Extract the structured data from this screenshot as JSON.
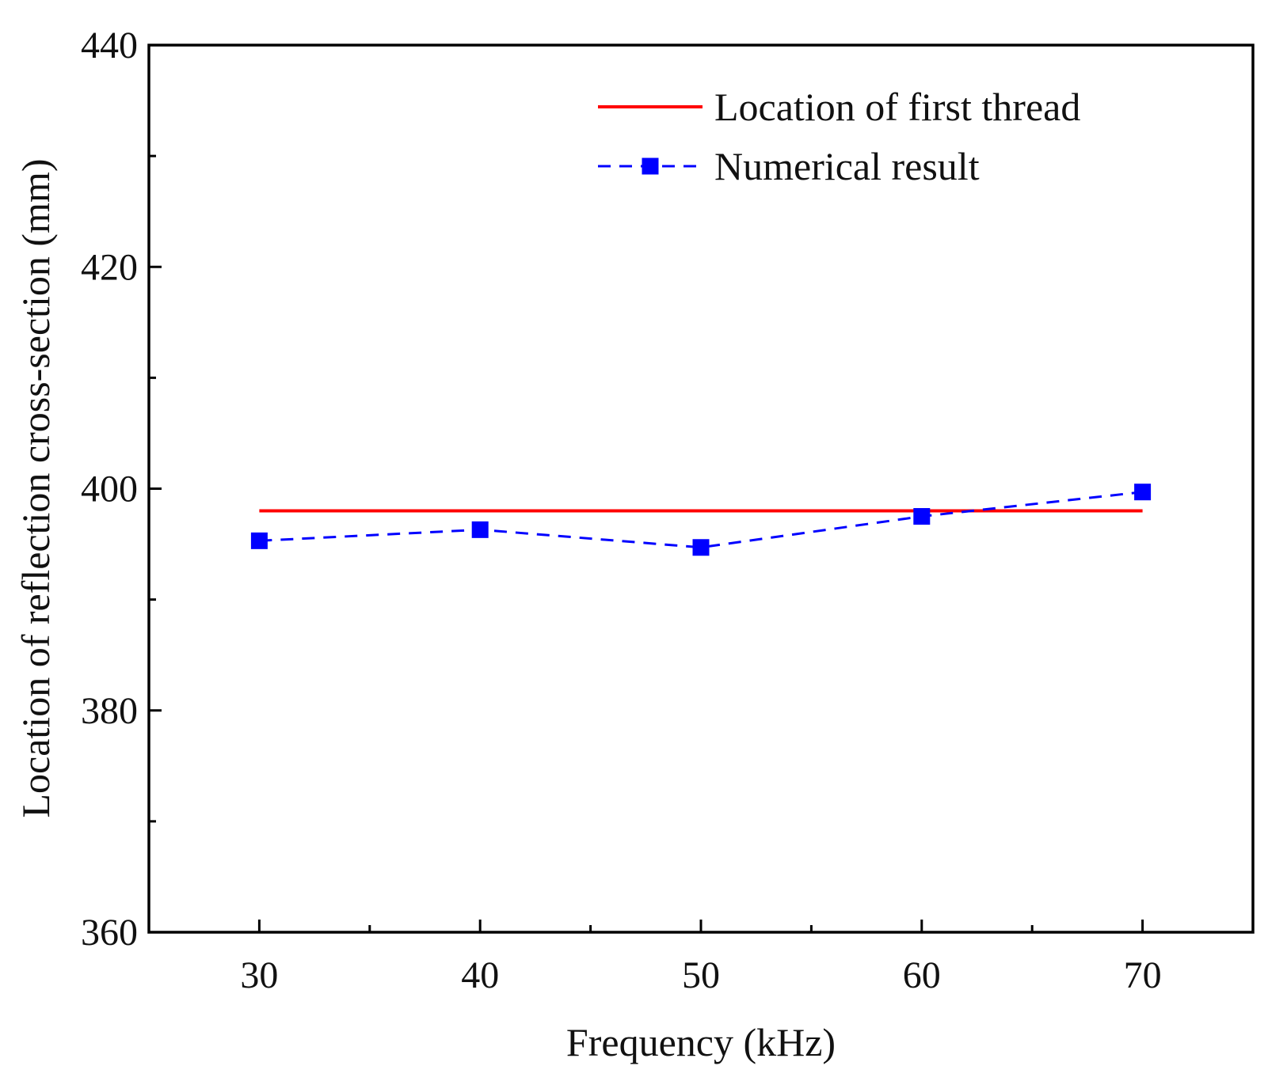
{
  "chart_data": {
    "type": "line",
    "title": "",
    "xlabel": "Frequency (kHz)",
    "ylabel": "Location of reflection cross-section (mm)",
    "xlim": [
      25,
      75
    ],
    "ylim": [
      360,
      440
    ],
    "x_ticks": [
      30,
      40,
      50,
      60,
      70
    ],
    "y_ticks": [
      360,
      380,
      400,
      420,
      440
    ],
    "x_minor_ticks": [
      35,
      45,
      55,
      65
    ],
    "y_minor_ticks": [
      370,
      390,
      410,
      430
    ],
    "x_tick_labels": [
      "30",
      "40",
      "50",
      "60",
      "70"
    ],
    "y_tick_labels": [
      "360",
      "380",
      "400",
      "420",
      "440"
    ],
    "grid": false,
    "legend_position": "top-right",
    "series": [
      {
        "name": "Location of first thread",
        "style": "solid",
        "marker": "none",
        "color": "#ff0000",
        "x": [
          30,
          70
        ],
        "values": [
          398,
          398
        ]
      },
      {
        "name": "Numerical result",
        "style": "dashed",
        "marker": "square",
        "color": "#0000ff",
        "x": [
          30,
          40,
          50,
          60,
          70
        ],
        "values": [
          395.3,
          396.3,
          394.7,
          397.5,
          399.7
        ]
      }
    ]
  }
}
